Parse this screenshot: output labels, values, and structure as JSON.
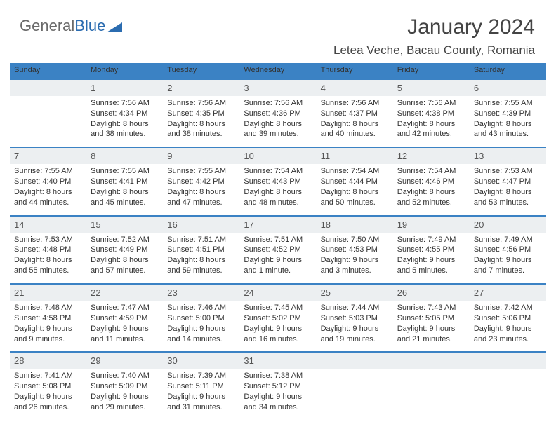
{
  "logo": {
    "part1": "General",
    "part2": "Blue"
  },
  "title": "January 2024",
  "location": "Letea Veche, Bacau County, Romania",
  "colors": {
    "header_bg": "#3b82c4",
    "header_fg": "#ffffff",
    "daynum_bg": "#eceff1",
    "text": "#333333",
    "page_bg": "#ffffff",
    "logo_blue": "#2b6cb0"
  },
  "daynames": [
    "Sunday",
    "Monday",
    "Tuesday",
    "Wednesday",
    "Thursday",
    "Friday",
    "Saturday"
  ],
  "weeks": [
    {
      "nums": [
        "",
        "1",
        "2",
        "3",
        "4",
        "5",
        "6"
      ],
      "cells": [
        [],
        [
          "Sunrise: 7:56 AM",
          "Sunset: 4:34 PM",
          "Daylight: 8 hours",
          "and 38 minutes."
        ],
        [
          "Sunrise: 7:56 AM",
          "Sunset: 4:35 PM",
          "Daylight: 8 hours",
          "and 38 minutes."
        ],
        [
          "Sunrise: 7:56 AM",
          "Sunset: 4:36 PM",
          "Daylight: 8 hours",
          "and 39 minutes."
        ],
        [
          "Sunrise: 7:56 AM",
          "Sunset: 4:37 PM",
          "Daylight: 8 hours",
          "and 40 minutes."
        ],
        [
          "Sunrise: 7:56 AM",
          "Sunset: 4:38 PM",
          "Daylight: 8 hours",
          "and 42 minutes."
        ],
        [
          "Sunrise: 7:55 AM",
          "Sunset: 4:39 PM",
          "Daylight: 8 hours",
          "and 43 minutes."
        ]
      ]
    },
    {
      "nums": [
        "7",
        "8",
        "9",
        "10",
        "11",
        "12",
        "13"
      ],
      "cells": [
        [
          "Sunrise: 7:55 AM",
          "Sunset: 4:40 PM",
          "Daylight: 8 hours",
          "and 44 minutes."
        ],
        [
          "Sunrise: 7:55 AM",
          "Sunset: 4:41 PM",
          "Daylight: 8 hours",
          "and 45 minutes."
        ],
        [
          "Sunrise: 7:55 AM",
          "Sunset: 4:42 PM",
          "Daylight: 8 hours",
          "and 47 minutes."
        ],
        [
          "Sunrise: 7:54 AM",
          "Sunset: 4:43 PM",
          "Daylight: 8 hours",
          "and 48 minutes."
        ],
        [
          "Sunrise: 7:54 AM",
          "Sunset: 4:44 PM",
          "Daylight: 8 hours",
          "and 50 minutes."
        ],
        [
          "Sunrise: 7:54 AM",
          "Sunset: 4:46 PM",
          "Daylight: 8 hours",
          "and 52 minutes."
        ],
        [
          "Sunrise: 7:53 AM",
          "Sunset: 4:47 PM",
          "Daylight: 8 hours",
          "and 53 minutes."
        ]
      ]
    },
    {
      "nums": [
        "14",
        "15",
        "16",
        "17",
        "18",
        "19",
        "20"
      ],
      "cells": [
        [
          "Sunrise: 7:53 AM",
          "Sunset: 4:48 PM",
          "Daylight: 8 hours",
          "and 55 minutes."
        ],
        [
          "Sunrise: 7:52 AM",
          "Sunset: 4:49 PM",
          "Daylight: 8 hours",
          "and 57 minutes."
        ],
        [
          "Sunrise: 7:51 AM",
          "Sunset: 4:51 PM",
          "Daylight: 8 hours",
          "and 59 minutes."
        ],
        [
          "Sunrise: 7:51 AM",
          "Sunset: 4:52 PM",
          "Daylight: 9 hours",
          "and 1 minute."
        ],
        [
          "Sunrise: 7:50 AM",
          "Sunset: 4:53 PM",
          "Daylight: 9 hours",
          "and 3 minutes."
        ],
        [
          "Sunrise: 7:49 AM",
          "Sunset: 4:55 PM",
          "Daylight: 9 hours",
          "and 5 minutes."
        ],
        [
          "Sunrise: 7:49 AM",
          "Sunset: 4:56 PM",
          "Daylight: 9 hours",
          "and 7 minutes."
        ]
      ]
    },
    {
      "nums": [
        "21",
        "22",
        "23",
        "24",
        "25",
        "26",
        "27"
      ],
      "cells": [
        [
          "Sunrise: 7:48 AM",
          "Sunset: 4:58 PM",
          "Daylight: 9 hours",
          "and 9 minutes."
        ],
        [
          "Sunrise: 7:47 AM",
          "Sunset: 4:59 PM",
          "Daylight: 9 hours",
          "and 11 minutes."
        ],
        [
          "Sunrise: 7:46 AM",
          "Sunset: 5:00 PM",
          "Daylight: 9 hours",
          "and 14 minutes."
        ],
        [
          "Sunrise: 7:45 AM",
          "Sunset: 5:02 PM",
          "Daylight: 9 hours",
          "and 16 minutes."
        ],
        [
          "Sunrise: 7:44 AM",
          "Sunset: 5:03 PM",
          "Daylight: 9 hours",
          "and 19 minutes."
        ],
        [
          "Sunrise: 7:43 AM",
          "Sunset: 5:05 PM",
          "Daylight: 9 hours",
          "and 21 minutes."
        ],
        [
          "Sunrise: 7:42 AM",
          "Sunset: 5:06 PM",
          "Daylight: 9 hours",
          "and 23 minutes."
        ]
      ]
    },
    {
      "nums": [
        "28",
        "29",
        "30",
        "31",
        "",
        "",
        ""
      ],
      "cells": [
        [
          "Sunrise: 7:41 AM",
          "Sunset: 5:08 PM",
          "Daylight: 9 hours",
          "and 26 minutes."
        ],
        [
          "Sunrise: 7:40 AM",
          "Sunset: 5:09 PM",
          "Daylight: 9 hours",
          "and 29 minutes."
        ],
        [
          "Sunrise: 7:39 AM",
          "Sunset: 5:11 PM",
          "Daylight: 9 hours",
          "and 31 minutes."
        ],
        [
          "Sunrise: 7:38 AM",
          "Sunset: 5:12 PM",
          "Daylight: 9 hours",
          "and 34 minutes."
        ],
        [],
        [],
        []
      ]
    }
  ]
}
